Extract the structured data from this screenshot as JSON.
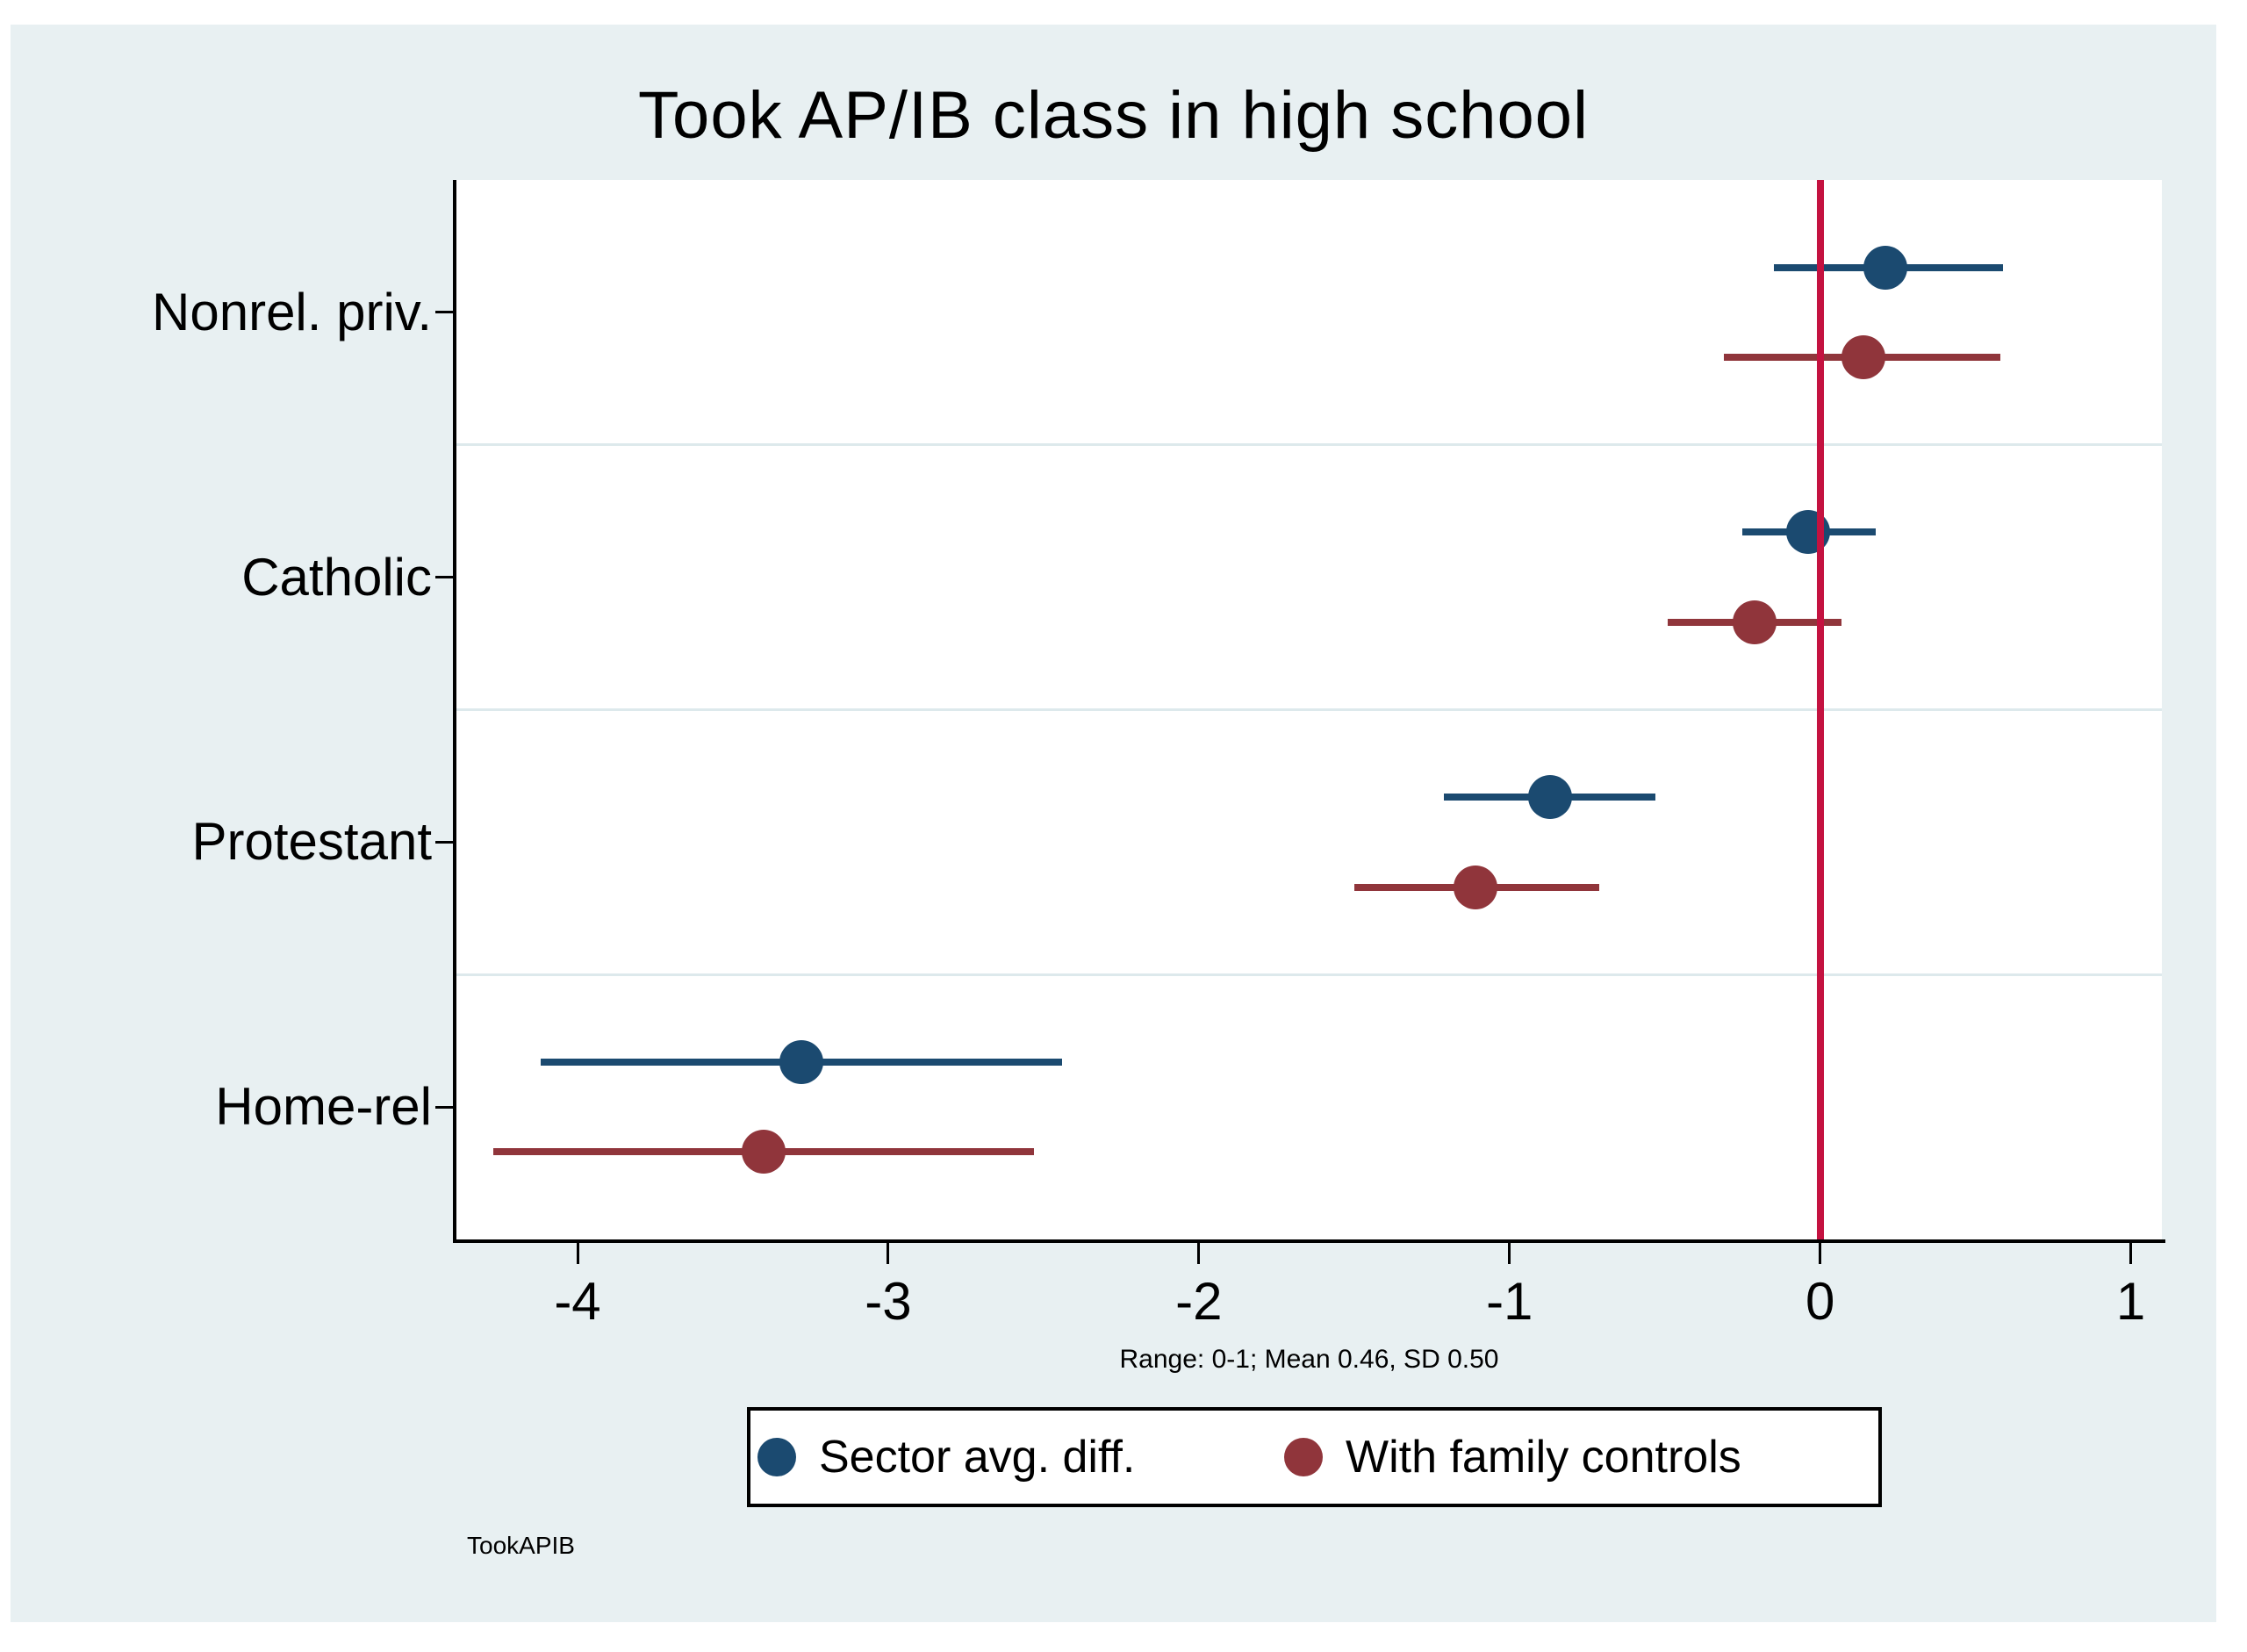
{
  "title": "Took AP/IB class in high school",
  "note": "Range: 0-1; Mean 0.46, SD 0.50",
  "watermark": "TookAPIB",
  "colors": {
    "background": "#e8f0f2",
    "plot_background": "#ffffff",
    "gridline": "#dde9ec",
    "axis": "#000000",
    "refline": "#c41240",
    "series_blue": "#1b4a70",
    "series_red": "#90353b"
  },
  "legend": {
    "items": [
      {
        "label": "Sector avg. diff.",
        "color": "#1b4a70"
      },
      {
        "label": "With family controls",
        "color": "#90353b"
      }
    ]
  },
  "chart_data": {
    "type": "scatter",
    "subtype": "coefficient-plot-with-ci",
    "title": "Took AP/IB class in high school",
    "categories": [
      "Nonrel. priv.",
      "Catholic",
      "Protestant",
      "Home-rel"
    ],
    "series": [
      {
        "name": "Sector avg. diff.",
        "color": "#1b4a70",
        "points": [
          {
            "category": "Nonrel. priv.",
            "est": 0.21,
            "ci": [
              -0.15,
              0.59
            ]
          },
          {
            "category": "Catholic",
            "est": -0.04,
            "ci": [
              -0.25,
              0.18
            ]
          },
          {
            "category": "Protestant",
            "est": -0.87,
            "ci": [
              -1.21,
              -0.53
            ]
          },
          {
            "category": "Home-rel",
            "est": -3.28,
            "ci": [
              -4.12,
              -2.44
            ]
          }
        ]
      },
      {
        "name": "With family controls",
        "color": "#90353b",
        "points": [
          {
            "category": "Nonrel. priv.",
            "est": 0.14,
            "ci": [
              -0.31,
              0.58
            ]
          },
          {
            "category": "Catholic",
            "est": -0.21,
            "ci": [
              -0.49,
              0.07
            ]
          },
          {
            "category": "Protestant",
            "est": -1.11,
            "ci": [
              -1.5,
              -0.71
            ]
          },
          {
            "category": "Home-rel",
            "est": -3.4,
            "ci": [
              -4.27,
              -2.53
            ]
          }
        ]
      }
    ],
    "xticks": [
      -4,
      -3,
      -2,
      -1,
      0,
      1
    ],
    "xlim": [
      -4.39,
      1.1
    ],
    "refline_x": 0,
    "grid": "horizontal-between-categories",
    "legend_position": "bottom-center",
    "xlabel": "",
    "ylabel": ""
  }
}
